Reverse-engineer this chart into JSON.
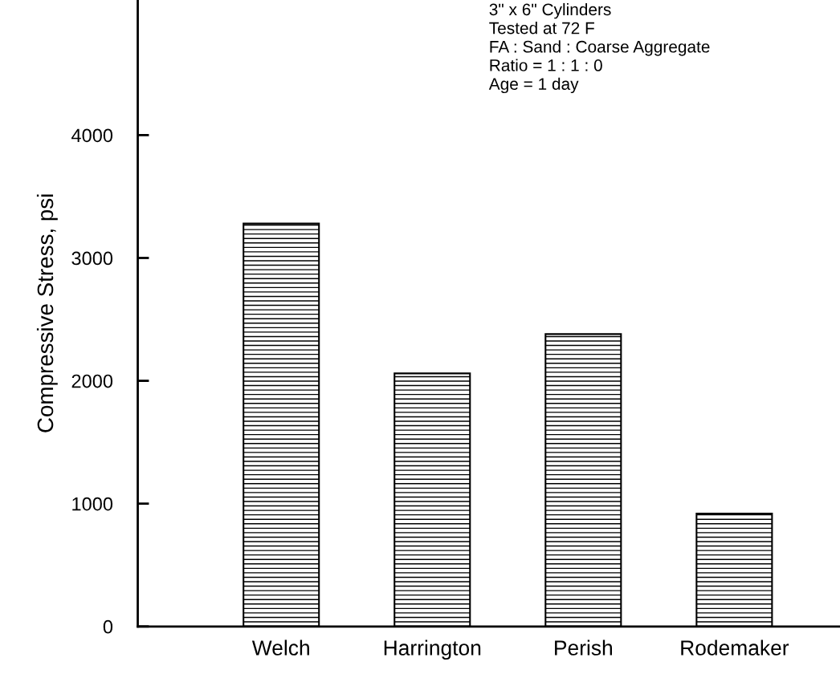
{
  "chart_data": {
    "type": "bar",
    "categories": [
      "Welch",
      "Harrington",
      "Perish",
      "Rodemaker"
    ],
    "values": [
      3280,
      2060,
      2380,
      920
    ],
    "color": "#000000",
    "ylabel": "Compressive Stress, psi",
    "ylim": [
      0,
      5100
    ],
    "yticks": [
      0,
      1000,
      2000,
      3000,
      4000
    ],
    "grid": false,
    "legend": false,
    "annotations": [
      "3\" x 6\" Cylinders\nTested at 72 F\nFA : Sand : Coarse Aggregate\nRatio = 1 : 1 : 0\nAge = 1 day"
    ]
  }
}
